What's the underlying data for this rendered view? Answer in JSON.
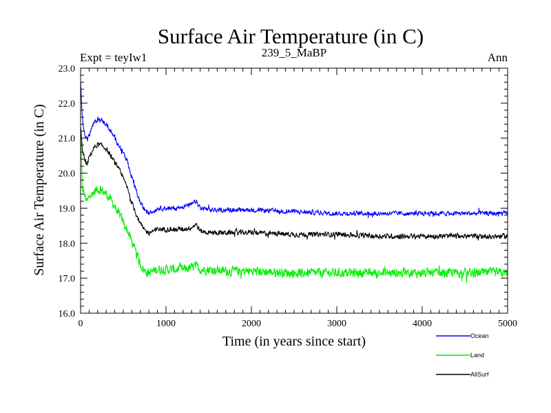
{
  "chart_data": {
    "type": "line",
    "title": "Surface Air Temperature (in C)",
    "subtitle_left": "Expt = teyIw1",
    "subtitle_center": "239_5_MaBP",
    "subtitle_right": "Ann",
    "xlabel": "Time (in years since start)",
    "ylabel": "Surface Air Temperature (in C)",
    "xlim": [
      0,
      5000
    ],
    "ylim": [
      16.0,
      23.0
    ],
    "xticks": [
      0,
      1000,
      2000,
      3000,
      4000,
      5000
    ],
    "xtick_labels": [
      "0",
      "1000",
      "2000",
      "3000",
      "4000",
      "5000"
    ],
    "yticks": [
      16.0,
      17.0,
      18.0,
      19.0,
      20.0,
      21.0,
      22.0,
      23.0
    ],
    "ytick_labels": [
      "16.0",
      "17.0",
      "18.0",
      "19.0",
      "20.0",
      "21.0",
      "22.0",
      "23.0"
    ],
    "grid": false,
    "legend_position": "bottom-right, below plot",
    "series": [
      {
        "name": "Ocean",
        "color": "#0000ff",
        "noise": 0.09,
        "x": [
          0,
          20,
          50,
          80,
          100,
          150,
          200,
          250,
          300,
          350,
          400,
          450,
          500,
          550,
          600,
          650,
          700,
          750,
          800,
          850,
          900,
          1000,
          1100,
          1200,
          1300,
          1350,
          1400,
          1500,
          1700,
          2000,
          2500,
          3000,
          3500,
          4000,
          4500,
          5000
        ],
        "y": [
          22.6,
          21.6,
          21.1,
          20.95,
          21.1,
          21.4,
          21.55,
          21.5,
          21.4,
          21.2,
          21.0,
          20.8,
          20.6,
          20.3,
          19.9,
          19.5,
          19.15,
          18.95,
          18.85,
          18.9,
          19.0,
          19.0,
          19.0,
          19.05,
          19.1,
          19.2,
          19.0,
          18.95,
          18.95,
          18.95,
          18.9,
          18.85,
          18.85,
          18.85,
          18.85,
          18.85
        ]
      },
      {
        "name": "Land",
        "color": "#00ee00",
        "noise": 0.18,
        "x": [
          0,
          20,
          50,
          80,
          100,
          150,
          200,
          250,
          300,
          350,
          400,
          450,
          500,
          550,
          600,
          650,
          700,
          750,
          800,
          850,
          900,
          1000,
          1100,
          1200,
          1300,
          1350,
          1400,
          1500,
          1700,
          2000,
          2500,
          3000,
          3500,
          4000,
          4500,
          5000
        ],
        "y": [
          21.2,
          19.6,
          19.35,
          19.2,
          19.3,
          19.45,
          19.55,
          19.5,
          19.4,
          19.25,
          19.05,
          18.85,
          18.6,
          18.35,
          18.05,
          17.7,
          17.4,
          17.2,
          17.15,
          17.2,
          17.25,
          17.25,
          17.25,
          17.25,
          17.3,
          17.35,
          17.25,
          17.25,
          17.2,
          17.2,
          17.15,
          17.15,
          17.15,
          17.15,
          17.15,
          17.15
        ]
      },
      {
        "name": "AllSurf",
        "color": "#000000",
        "noise": 0.1,
        "x": [
          0,
          20,
          50,
          80,
          100,
          150,
          200,
          250,
          300,
          350,
          400,
          450,
          500,
          550,
          600,
          650,
          700,
          750,
          800,
          850,
          900,
          1000,
          1100,
          1200,
          1300,
          1350,
          1400,
          1500,
          1700,
          2000,
          2500,
          3000,
          3500,
          4000,
          4500,
          5000
        ],
        "y": [
          21.3,
          20.7,
          20.35,
          20.25,
          20.45,
          20.7,
          20.82,
          20.78,
          20.7,
          20.5,
          20.3,
          20.1,
          19.85,
          19.55,
          19.15,
          18.85,
          18.55,
          18.35,
          18.3,
          18.35,
          18.4,
          18.4,
          18.4,
          18.4,
          18.45,
          18.55,
          18.35,
          18.3,
          18.3,
          18.3,
          18.25,
          18.25,
          18.2,
          18.2,
          18.2,
          18.2
        ]
      }
    ]
  }
}
